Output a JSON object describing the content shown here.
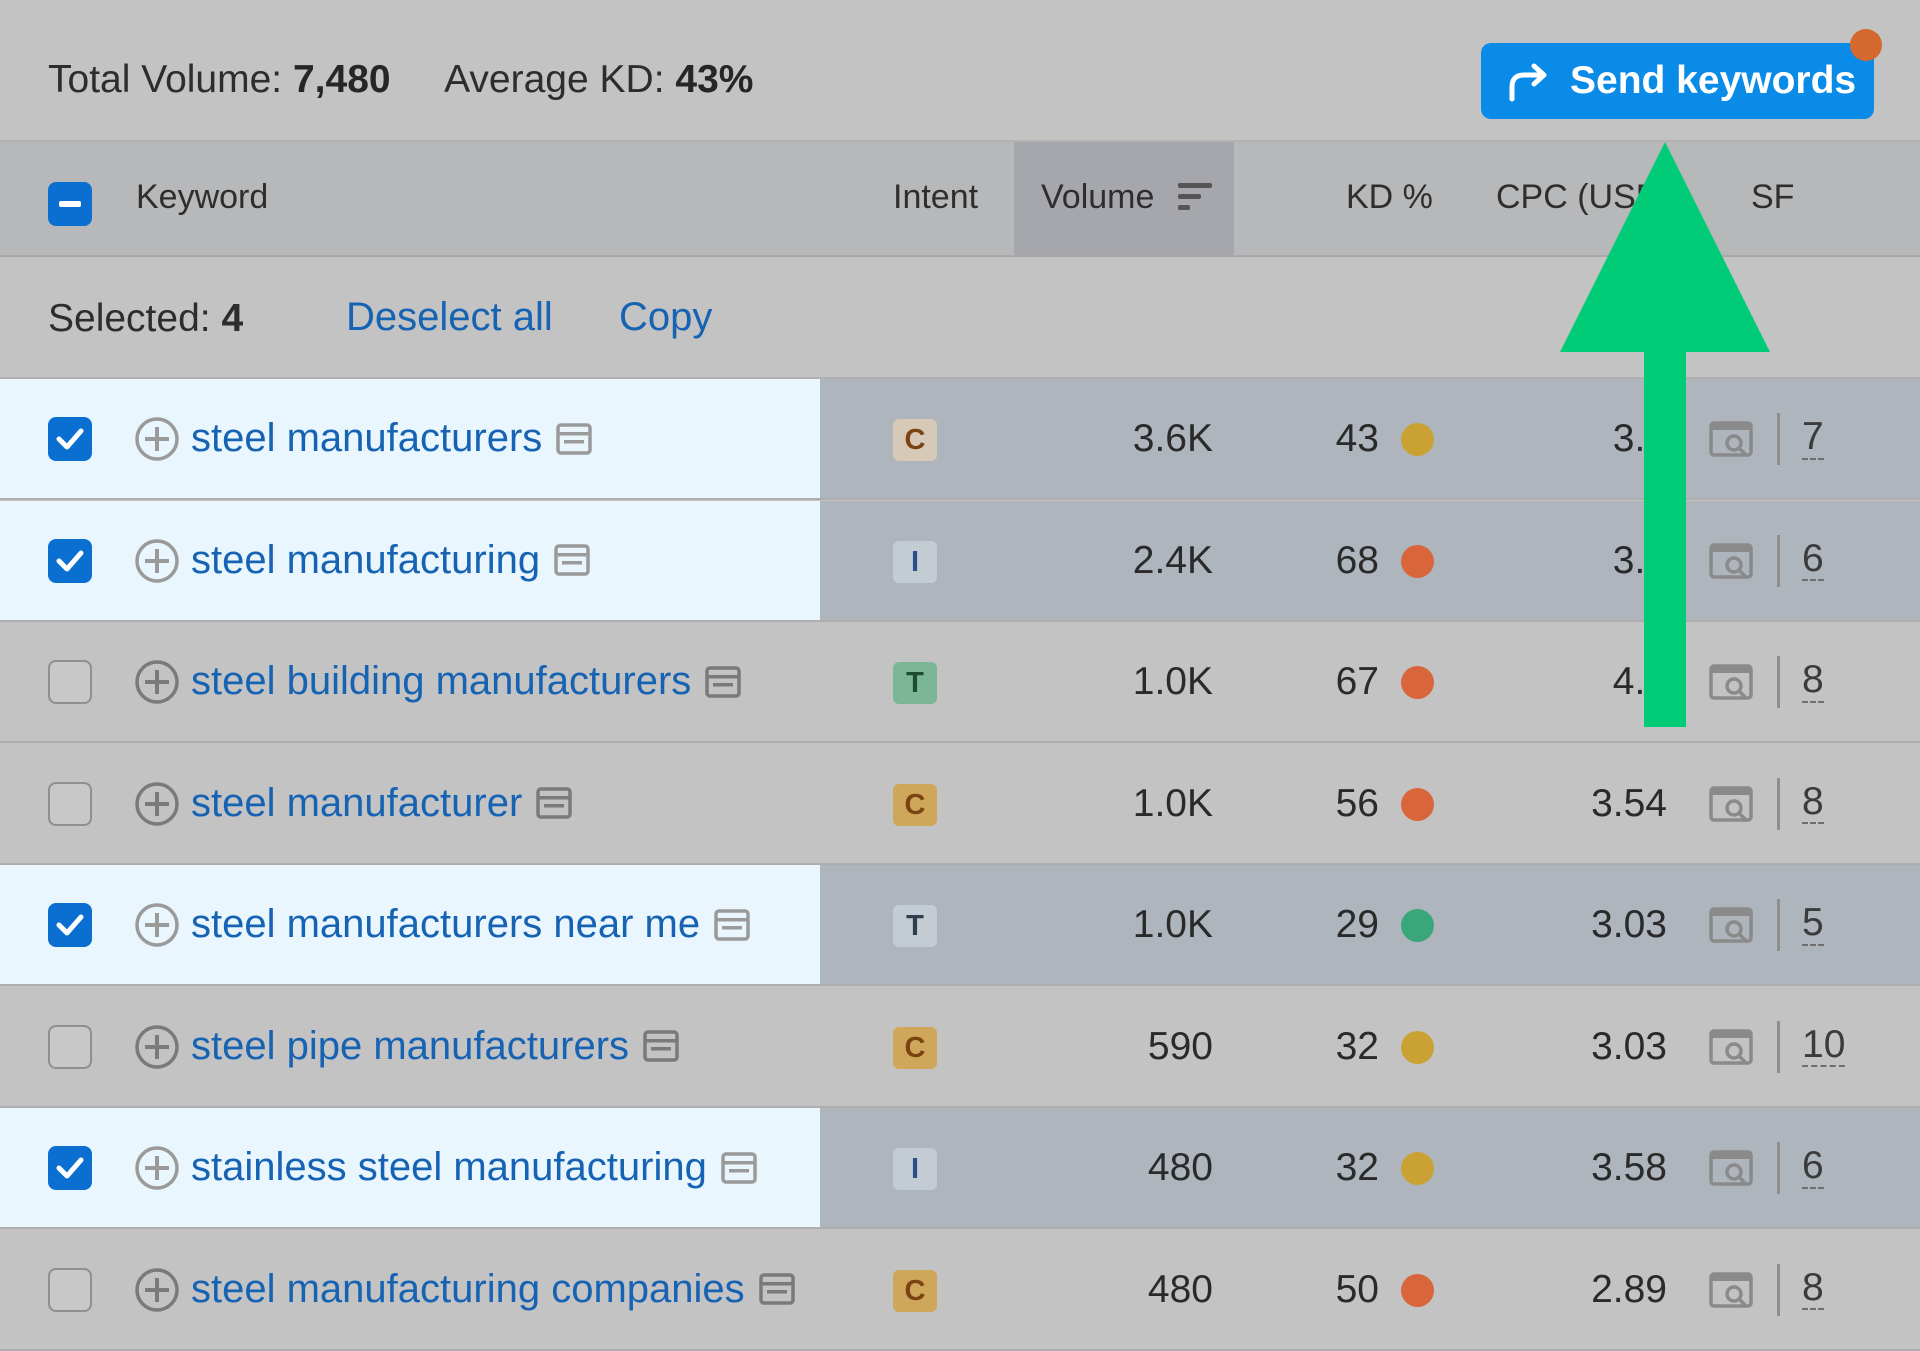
{
  "summary": {
    "total_volume_label": "Total Volume:",
    "total_volume": "7,480",
    "avg_kd_label": "Average KD:",
    "avg_kd": "43%"
  },
  "send_button": {
    "label": "Send keywords",
    "icon": "share-arrow-icon",
    "badge_color": "#d4682f"
  },
  "columns": {
    "keyword": "Keyword",
    "intent": "Intent",
    "volume": "Volume",
    "kd": "KD %",
    "cpc": "CPC (USD",
    "sf": "SF"
  },
  "selection": {
    "label": "Selected:",
    "count": "4",
    "deselect_all": "Deselect all",
    "copy": "Copy"
  },
  "rows": [
    {
      "selected": true,
      "keyword": "steel manufacturers",
      "intent": "C",
      "volume": "3.6K",
      "kd": "43",
      "kd_color": "#c9a233",
      "cpc": "3.5",
      "sf": "7"
    },
    {
      "selected": true,
      "keyword": "steel manufacturing",
      "intent": "I",
      "volume": "2.4K",
      "kd": "68",
      "kd_color": "#d8663a",
      "cpc": "3.5",
      "sf": "6"
    },
    {
      "selected": false,
      "keyword": "steel building manufacturers",
      "intent": "T",
      "volume": "1.0K",
      "kd": "67",
      "kd_color": "#d8663a",
      "cpc": "4.3",
      "sf": "8"
    },
    {
      "selected": false,
      "keyword": "steel manufacturer",
      "intent": "C",
      "volume": "1.0K",
      "kd": "56",
      "kd_color": "#d8663a",
      "cpc": "3.54",
      "sf": "8"
    },
    {
      "selected": true,
      "keyword": "steel manufacturers near me",
      "intent": "T",
      "volume": "1.0K",
      "kd": "29",
      "kd_color": "#3aa77a",
      "cpc": "3.03",
      "sf": "5"
    },
    {
      "selected": false,
      "keyword": "steel pipe manufacturers",
      "intent": "C",
      "volume": "590",
      "kd": "32",
      "kd_color": "#c9a233",
      "cpc": "3.03",
      "sf": "10"
    },
    {
      "selected": true,
      "keyword": "stainless steel manufacturing",
      "intent": "I",
      "volume": "480",
      "kd": "32",
      "kd_color": "#c9a233",
      "cpc": "3.58",
      "sf": "6"
    },
    {
      "selected": false,
      "keyword": "steel manufacturing companies",
      "intent": "C",
      "volume": "480",
      "kd": "50",
      "kd_color": "#d8663a",
      "cpc": "2.89",
      "sf": "8"
    }
  ],
  "annotation": {
    "icon": "green-up-arrow",
    "color": "#00cc77"
  }
}
